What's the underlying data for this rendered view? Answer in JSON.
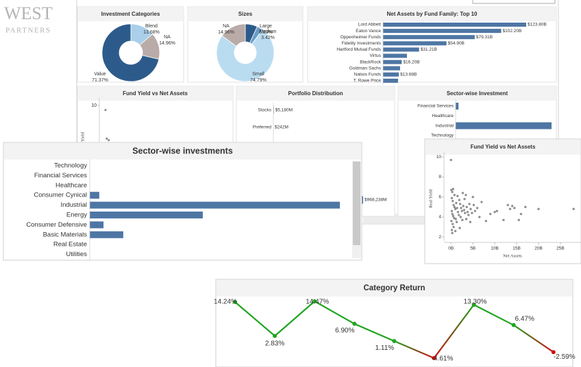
{
  "logo": {
    "line1": "WEST",
    "line2": "PARTNERS"
  },
  "chart_data": [
    {
      "type": "pie",
      "title": "Investment Categories",
      "categories": [
        "Blend",
        "NA",
        "Value"
      ],
      "values": [
        13.68,
        14.96,
        71.37
      ],
      "value_labels": [
        "13.68%",
        "14.96%",
        "71.37%"
      ],
      "colors": [
        "#a9cfea",
        "#b9aba8",
        "#2c5b8b"
      ]
    },
    {
      "type": "pie",
      "title": "Sizes",
      "categories": [
        "Large",
        "Medium",
        "Small",
        "NA"
      ],
      "values": [
        6.83,
        3.42,
        74.79,
        14.96
      ],
      "value_labels": [
        "6.83%",
        "3.42%",
        "74.79%",
        "14.96%"
      ],
      "colors": [
        "#2c5b8b",
        "#6a9cc8",
        "#badcf1",
        "#b9aba8"
      ]
    },
    {
      "type": "hbar",
      "title": "Net Assets by Fund Family: Top 10",
      "categories": [
        "Lord Abbett",
        "Eaton Vance",
        "Oppenheimer Funds",
        "Fidelity Investments",
        "Hartford Mutual Funds",
        "Virtus",
        "BlackRock",
        "Goldman Sachs",
        "Natixis Funds",
        "T. Rowe Price"
      ],
      "values": [
        123.8,
        102.2,
        79.31,
        54.9,
        31.21,
        20.7,
        16.2,
        14.8,
        13.68,
        13.0
      ],
      "value_labels": [
        "$123.80B",
        "$102.20B",
        "$79.31B",
        "$54.90B",
        "$31.21B",
        null,
        "$16.20B",
        null,
        "$13.68B",
        null
      ],
      "color": "#4e76a4"
    },
    {
      "type": "scatter",
      "title": "Fund Yield vs Net Assets",
      "y_label": "Yield",
      "ylim": [
        2,
        10.5
      ],
      "yticks": [
        10
      ],
      "xlim": [
        -1.5,
        29.5
      ],
      "x": [
        0,
        0.3,
        0.8,
        2,
        3.2
      ],
      "y": [
        9.7,
        7.8,
        7.7,
        7.5,
        7.5
      ],
      "color": "#555555"
    },
    {
      "type": "hbar",
      "title": "Portfolio Distribution",
      "categories": [
        "Stocks",
        "Preferred",
        null
      ],
      "values": [
        5180,
        242,
        968238
      ],
      "value_labels": [
        "$5,180M",
        "$242M",
        "$968,238M"
      ],
      "color": "#4e76a4"
    },
    {
      "type": "hbar",
      "title": "Sector-wise Investment",
      "categories": [
        "Financial Services",
        "Healthcare",
        "Industrial",
        "Technology"
      ],
      "values": [
        3,
        0,
        100,
        0
      ],
      "color": "#4e76a4"
    },
    {
      "type": "hbar",
      "title": "Sector-wise investments",
      "categories": [
        "Technology",
        "Financial Services",
        "Healthcare",
        "Consumer Cynical",
        "Industrial",
        "Energy",
        "Consumer Defensive",
        "Basic Materials",
        "Real Estate",
        "Utilities"
      ],
      "values": [
        0,
        0,
        0,
        3.8,
        100,
        45.2,
        5.5,
        13.4,
        0,
        0
      ],
      "color": "#4e76a4"
    },
    {
      "type": "scatter",
      "title": "Fund Yield vs Net Assets",
      "x_label": "Net Assets",
      "y_label": "Real Yield",
      "xlim": [
        -1.6,
        29.7
      ],
      "ylim": [
        1.6,
        10.5
      ],
      "xticks": [
        {
          "value": 0,
          "label": "0B"
        },
        {
          "value": 5,
          "label": "5B"
        },
        {
          "value": 10,
          "label": "10B"
        },
        {
          "value": 15,
          "label": "15B"
        },
        {
          "value": 20,
          "label": "20B"
        },
        {
          "value": 25,
          "label": "25B"
        }
      ],
      "yticks": [
        2,
        4,
        6,
        8,
        10
      ],
      "x": [
        0,
        0.1,
        0.3,
        0.5,
        0.2,
        0.4,
        0.6,
        0.8,
        1.0,
        0.2,
        0.3,
        0.5,
        0.7,
        0.1,
        0.4,
        0.6,
        0.2,
        0.3,
        1.2,
        1.4,
        1.6,
        1.8,
        1.1,
        1.3,
        1.5,
        1.9,
        2.1,
        2.3,
        2.5,
        2.2,
        2.6,
        2.8,
        3.0,
        3.2,
        3.4,
        3.1,
        3.6,
        3.8,
        4.0,
        3.5,
        4.2,
        4.5,
        4.8,
        5.0,
        5.2,
        5.5,
        6.0,
        6.5,
        7.0,
        8.0,
        9.0,
        10.0,
        10.5,
        12.0,
        13.0,
        13.5,
        14.0,
        14.5,
        15.5,
        16.0,
        17.0,
        20.0,
        28.0,
        2.0,
        1.0,
        0.8,
        2.7,
        4.4
      ],
      "y": [
        9.7,
        6.7,
        6.5,
        6.8,
        5.9,
        5.6,
        5.2,
        5.0,
        4.8,
        4.6,
        4.3,
        4.1,
        3.9,
        3.6,
        3.3,
        3.0,
        2.7,
        2.4,
        5.4,
        4.9,
        4.5,
        4.2,
        3.8,
        3.5,
        6.1,
        5.7,
        5.3,
        4.9,
        4.6,
        4.0,
        3.7,
        5.1,
        4.7,
        4.4,
        6.2,
        5.8,
        5.0,
        4.5,
        4.2,
        3.8,
        5.3,
        4.8,
        4.4,
        6.0,
        5.2,
        4.6,
        4.9,
        4.0,
        5.5,
        3.6,
        4.3,
        4.5,
        4.6,
        3.7,
        5.2,
        4.8,
        5.1,
        4.9,
        3.7,
        4.3,
        5.0,
        4.8,
        4.8,
        2.9,
        2.6,
        6.2,
        6.4,
        3.5
      ],
      "color": "#555555"
    },
    {
      "type": "line",
      "title": "Category Return",
      "values": [
        14.24,
        2.83,
        14.47,
        6.9,
        1.11,
        -4.61,
        13.3,
        6.47,
        -2.59
      ],
      "value_labels": [
        "14.24%",
        "2.83%",
        "14.47%",
        "6.90%",
        "1.11%",
        "-4.61%",
        "13.30%",
        "6.47%",
        "-2.59%"
      ],
      "colors": {
        "positive": "#1fa51f",
        "negative": "#cc1010"
      }
    }
  ]
}
